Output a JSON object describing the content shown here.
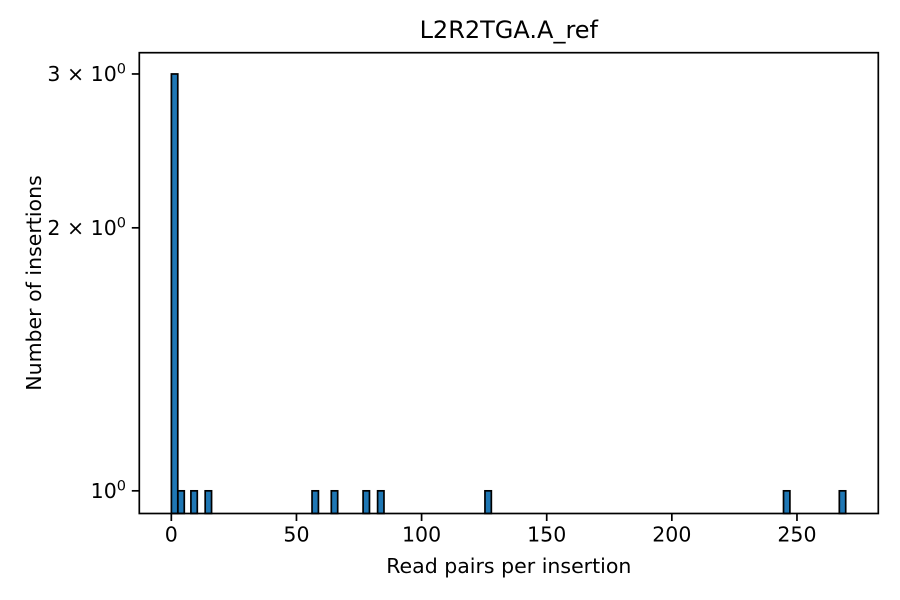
{
  "chart_data": {
    "type": "bar",
    "title": "L2R2TGA.A_ref",
    "xlabel": "Read pairs per insertion",
    "ylabel": "Number of insertions",
    "xscale": "linear",
    "yscale": "log",
    "grid": false,
    "legend": false,
    "xlim": [
      -12.8,
      282.5
    ],
    "ylim": [
      0.942,
      3.173
    ],
    "bar_width": 2.55,
    "xticks": [
      {
        "value": 0,
        "label": "0"
      },
      {
        "value": 50,
        "label": "50"
      },
      {
        "value": 100,
        "label": "100"
      },
      {
        "value": 150,
        "label": "150"
      },
      {
        "value": 200,
        "label": "200"
      },
      {
        "value": 250,
        "label": "250"
      }
    ],
    "yticks": [
      {
        "value": 1,
        "coefficient": "",
        "base": "10",
        "exponent": "0",
        "label": "10⁰"
      },
      {
        "value": 2,
        "coefficient": "2 × ",
        "base": "10",
        "exponent": "0",
        "label": "2 × 10⁰"
      },
      {
        "value": 3,
        "coefficient": "3 × ",
        "base": "10",
        "exponent": "0",
        "label": "3 × 10⁰"
      }
    ],
    "bars": [
      {
        "x": 1.3,
        "count": 3
      },
      {
        "x": 3.9,
        "count": 1
      },
      {
        "x": 9.1,
        "count": 1
      },
      {
        "x": 14.8,
        "count": 1
      },
      {
        "x": 57.5,
        "count": 1
      },
      {
        "x": 65.2,
        "count": 1
      },
      {
        "x": 77.9,
        "count": 1
      },
      {
        "x": 83.7,
        "count": 1
      },
      {
        "x": 126.6,
        "count": 1
      },
      {
        "x": 245.9,
        "count": 1
      },
      {
        "x": 268.2,
        "count": 1
      }
    ],
    "colors": {
      "bar_fill": "#1f77b4",
      "bar_edge": "#000000",
      "axis": "#000000",
      "text": "#000000",
      "background": "#ffffff"
    }
  }
}
